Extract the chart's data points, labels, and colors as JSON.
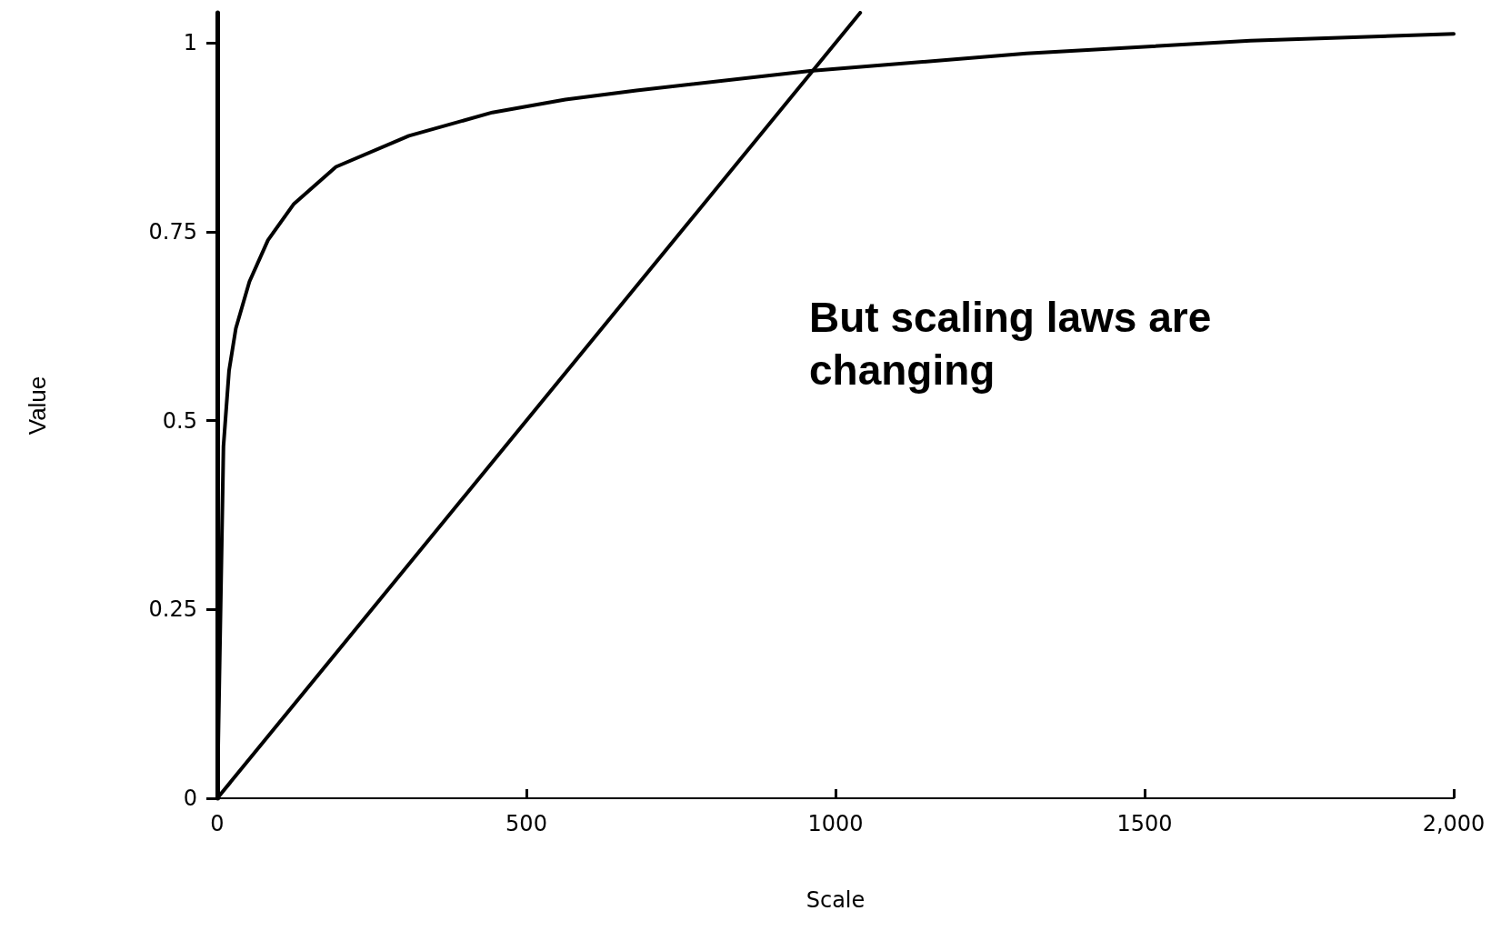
{
  "chart_data": {
    "type": "line",
    "xlabel": "Scale",
    "ylabel": "Value",
    "annotations": [
      "But scaling laws are changing"
    ],
    "xlim": [
      0,
      2000
    ],
    "xticks": [
      0,
      500,
      1000,
      1500,
      {
        "value": 2000,
        "label": "2,000"
      }
    ],
    "ylim": [
      0,
      1.04
    ],
    "yticks": [
      0,
      0.25,
      0.5,
      0.75,
      1
    ],
    "grid": false,
    "marker": "none",
    "line_style": "solid",
    "series": [
      {
        "color": "#000000",
        "x": [
          0,
          10,
          19,
          30,
          52,
          82,
          124,
          192,
          310,
          445,
          563,
          678,
          959,
          1309,
          1671,
          2000
        ],
        "values": [
          0,
          0.466,
          0.566,
          0.622,
          0.684,
          0.739,
          0.787,
          0.836,
          0.877,
          0.908,
          0.925,
          0.937,
          0.963,
          0.986,
          1.003,
          1.012
        ]
      },
      {
        "color": "#000000",
        "x": [
          0,
          1040
        ],
        "values": [
          0,
          1.04
        ]
      }
    ]
  }
}
